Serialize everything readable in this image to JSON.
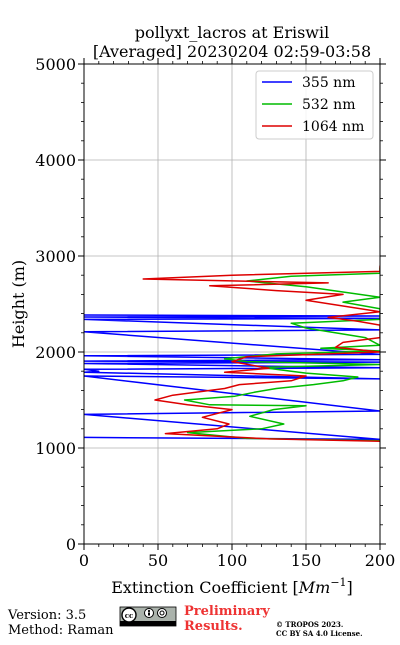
{
  "chart_data": {
    "type": "line",
    "title": "pollyxt_lacros at Eriswil",
    "subtitle": "[Averaged] 20230204 02:59-03:58",
    "xlabel_text": "Extinction Coefficient [",
    "xlabel_unit": "Mm",
    "xlabel_exp": "−1",
    "xlabel_close": "]",
    "ylabel": "Height (m)",
    "xlim": [
      0,
      200
    ],
    "ylim": [
      0,
      5000
    ],
    "xticks": [
      0,
      50,
      100,
      150,
      200
    ],
    "xtick_labels": [
      "0",
      "50",
      "100",
      "150",
      "200"
    ],
    "yticks": [
      0,
      1000,
      2000,
      3000,
      4000,
      5000
    ],
    "ytick_labels": [
      "0",
      "1000",
      "2000",
      "3000",
      "4000",
      "5000"
    ],
    "grid": true,
    "legend_position": "top-right",
    "series": [
      {
        "name": "355 nm",
        "color": "#0000ff",
        "points": [
          [
            0,
            1110
          ],
          [
            200,
            1090
          ],
          [
            0,
            1350
          ],
          [
            200,
            1385
          ],
          [
            0,
            1750
          ],
          [
            200,
            1720
          ],
          [
            0,
            1790
          ],
          [
            10,
            1800
          ],
          [
            0,
            1820
          ],
          [
            200,
            1835
          ],
          [
            0,
            1880
          ],
          [
            200,
            1895
          ],
          [
            0,
            1905
          ],
          [
            200,
            1920
          ],
          [
            0,
            1960
          ],
          [
            200,
            1975
          ],
          [
            0,
            2210
          ],
          [
            200,
            2230
          ],
          [
            0,
            2340
          ],
          [
            200,
            2350
          ],
          [
            0,
            2365
          ],
          [
            200,
            2375
          ],
          [
            0,
            2385
          ]
        ]
      },
      {
        "name": "532 nm",
        "color": "#00bb00",
        "points": [
          [
            200,
            1075
          ],
          [
            110,
            1100
          ],
          [
            70,
            1160
          ],
          [
            120,
            1200
          ],
          [
            135,
            1250
          ],
          [
            112,
            1330
          ],
          [
            128,
            1400
          ],
          [
            150,
            1440
          ],
          [
            85,
            1450
          ],
          [
            68,
            1500
          ],
          [
            102,
            1540
          ],
          [
            115,
            1580
          ],
          [
            130,
            1620
          ],
          [
            155,
            1660
          ],
          [
            175,
            1700
          ],
          [
            185,
            1740
          ],
          [
            150,
            1780
          ],
          [
            140,
            1800
          ],
          [
            120,
            1840
          ],
          [
            200,
            1870
          ],
          [
            110,
            1900
          ],
          [
            95,
            1930
          ],
          [
            130,
            1980
          ],
          [
            200,
            2010
          ],
          [
            160,
            2040
          ],
          [
            200,
            2070
          ],
          [
            190,
            2150
          ],
          [
            150,
            2250
          ],
          [
            140,
            2300
          ],
          [
            200,
            2340
          ],
          [
            200,
            2450
          ],
          [
            175,
            2520
          ],
          [
            200,
            2570
          ],
          [
            150,
            2680
          ],
          [
            110,
            2740
          ],
          [
            140,
            2790
          ],
          [
            200,
            2820
          ],
          [
            200,
            2880
          ]
        ]
      },
      {
        "name": "1064 nm",
        "color": "#dd0000",
        "points": [
          [
            200,
            1070
          ],
          [
            125,
            1095
          ],
          [
            55,
            1150
          ],
          [
            90,
            1200
          ],
          [
            98,
            1250
          ],
          [
            80,
            1320
          ],
          [
            100,
            1400
          ],
          [
            70,
            1450
          ],
          [
            48,
            1500
          ],
          [
            60,
            1550
          ],
          [
            95,
            1620
          ],
          [
            105,
            1660
          ],
          [
            140,
            1700
          ],
          [
            150,
            1750
          ],
          [
            95,
            1790
          ],
          [
            125,
            1830
          ],
          [
            100,
            1900
          ],
          [
            110,
            1950
          ],
          [
            200,
            2000
          ],
          [
            170,
            2050
          ],
          [
            175,
            2100
          ],
          [
            200,
            2150
          ],
          [
            200,
            2280
          ],
          [
            185,
            2320
          ],
          [
            165,
            2360
          ],
          [
            200,
            2420
          ],
          [
            150,
            2540
          ],
          [
            175,
            2600
          ],
          [
            130,
            2640
          ],
          [
            85,
            2690
          ],
          [
            165,
            2720
          ],
          [
            40,
            2760
          ],
          [
            100,
            2800
          ],
          [
            200,
            2840
          ],
          [
            200,
            2900
          ]
        ]
      }
    ]
  },
  "footer": {
    "version": "Version: 3.5",
    "method": "Method: Raman",
    "cc_label": "cc",
    "prelim_line1": "Preliminary",
    "prelim_line2": "Results.",
    "copyright_line1": "© TROPOS 2023.",
    "copyright_line2": "CC BY SA 4.0 License."
  }
}
